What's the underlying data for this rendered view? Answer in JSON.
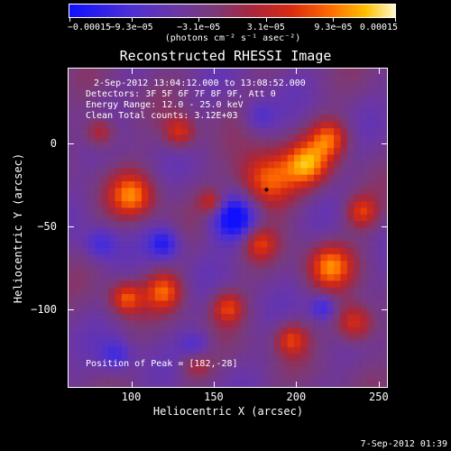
{
  "chart_data": {
    "type": "heatmap",
    "title": "Reconstructed RHESSI Image",
    "xlabel": "Heliocentric X (arcsec)",
    "ylabel": "Heliocentric Y (arcsec)",
    "xlim": [
      62,
      255
    ],
    "ylim": [
      -147,
      45
    ],
    "x_ticks": [
      "100",
      "150",
      "200",
      "250"
    ],
    "x_tick_values": [
      100,
      150,
      200,
      250
    ],
    "y_ticks": [
      "0",
      "−50",
      "−100"
    ],
    "y_tick_values": [
      0,
      -50,
      -100
    ],
    "colorbar": {
      "labels": [
        "−0.00015",
        "−9.3e−05",
        "−3.1e−05",
        "3.1e−05",
        "9.3e−05",
        "0.00015"
      ],
      "values": [
        -0.00015,
        -9.3e-05,
        -3.1e-05,
        3.1e-05,
        9.3e-05,
        0.00015
      ],
      "unit": "(photons cm⁻² s⁻¹ asec⁻²)"
    },
    "info": {
      "time": "2-Sep-2012 13:04:12.000 to 13:08:52.000",
      "detectors": "Detectors: 3F 5F 6F 7F 8F 9F, Att 0",
      "energy": "Energy Range: 12.0 - 25.0 keV",
      "clean": "Clean     Total counts: 3.12E+03",
      "peak": "Position of Peak = [182,-28]"
    },
    "peak": [
      182,
      -28
    ]
  },
  "footer": {
    "date": "7-Sep-2012 01:39"
  }
}
